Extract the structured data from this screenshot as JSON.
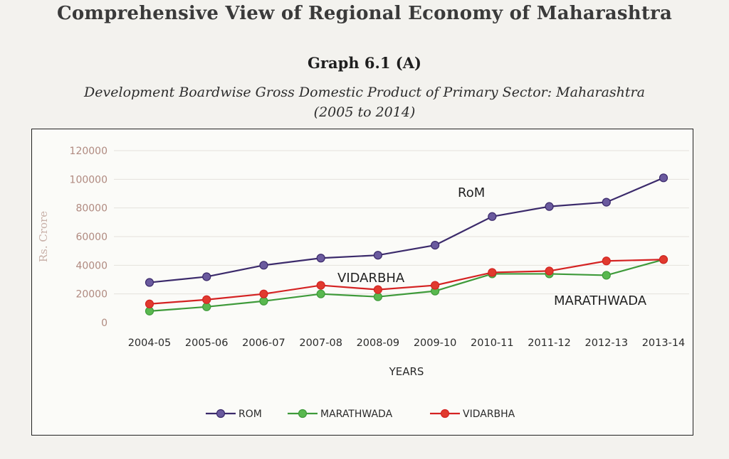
{
  "page": {
    "header_title": "Comprehensive View of Regional Economy of Maharashtra",
    "graph_number": "Graph 6.1 (A)",
    "subtitle_line1": "Development Boardwise Gross Domestic Product of Primary Sector: Maharashtra",
    "subtitle_line2": "(2005 to 2014)"
  },
  "chart_data": {
    "type": "line",
    "categories": [
      "2004-05",
      "2005-06",
      "2006-07",
      "2007-08",
      "2008-09",
      "2009-10",
      "2010-11",
      "2011-12",
      "2012-13",
      "2013-14"
    ],
    "series": [
      {
        "name": "ROM",
        "color": "#3b2a6b",
        "marker": "#6a5a9e",
        "values": [
          28000,
          32000,
          40000,
          45000,
          47000,
          54000,
          74000,
          81000,
          84000,
          101000
        ]
      },
      {
        "name": "MARATHWADA",
        "color": "#3e9a3a",
        "marker": "#59b84f",
        "values": [
          8000,
          11000,
          15000,
          20000,
          18000,
          22000,
          34000,
          34000,
          33000,
          44000
        ]
      },
      {
        "name": "VIDARBHA",
        "color": "#d42222",
        "marker": "#e03a2e",
        "values": [
          13000,
          16000,
          20000,
          26000,
          23000,
          26000,
          35000,
          36000,
          43000,
          44000
        ]
      }
    ],
    "yticks": [
      "120000",
      "100000",
      "80000",
      "60000",
      "40000",
      "20000",
      "0"
    ],
    "ylim": [
      0,
      120000
    ],
    "xlabel": "YEARS",
    "ylabel": "Rs. Crore",
    "annotations": [
      "RoM",
      "VIDARBHA",
      "MARATHWADA"
    ],
    "legend_placement": "bottom",
    "grid": true
  }
}
